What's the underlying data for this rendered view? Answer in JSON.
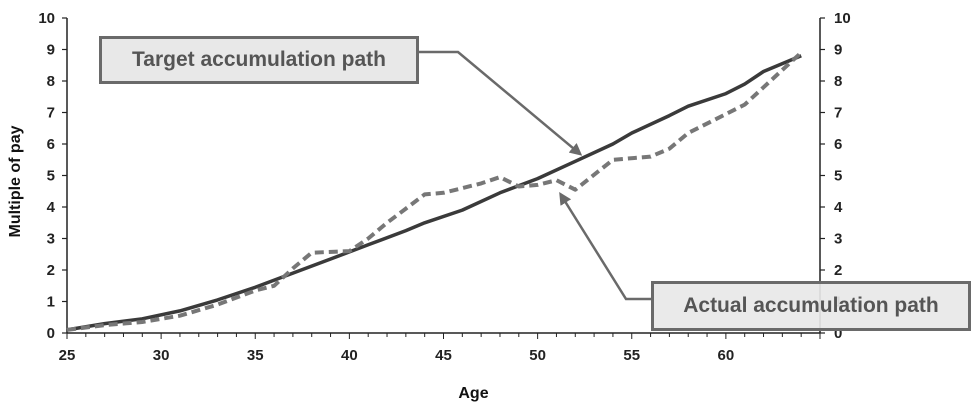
{
  "chart_data": {
    "type": "line",
    "title": "",
    "xlabel": "Age",
    "ylabel": "Multiple of pay",
    "xlim": [
      25,
      65
    ],
    "ylim": [
      0,
      10
    ],
    "x_ticks": [
      25,
      30,
      35,
      40,
      45,
      50,
      55,
      60
    ],
    "y_ticks": [
      0,
      1,
      2,
      3,
      4,
      5,
      6,
      7,
      8,
      9,
      10
    ],
    "secondary_y_ticks": [
      0,
      1,
      2,
      3,
      4,
      5,
      6,
      7,
      8,
      9,
      10
    ],
    "grid": false,
    "series": [
      {
        "name": "Target accumulation path",
        "style": "solid",
        "color": "#3a3a3a",
        "x": [
          25,
          27,
          29,
          31,
          33,
          35,
          37,
          39,
          41,
          43,
          44,
          46,
          48,
          50,
          52,
          54,
          55,
          57,
          58,
          60,
          61,
          62,
          64
        ],
        "y": [
          0.1,
          0.3,
          0.45,
          0.7,
          1.05,
          1.45,
          1.9,
          2.35,
          2.8,
          3.25,
          3.5,
          3.9,
          4.45,
          4.9,
          5.45,
          6.0,
          6.35,
          6.9,
          7.2,
          7.6,
          7.9,
          8.3,
          8.8
        ]
      },
      {
        "name": "Actual accumulation path",
        "style": "dashed",
        "color": "#777777",
        "x": [
          25,
          27,
          29,
          31,
          33,
          35,
          36,
          37,
          38,
          40,
          41,
          42,
          43,
          44,
          45,
          47,
          48,
          49,
          50,
          51,
          52,
          54,
          56,
          57,
          58,
          60,
          61,
          62,
          64
        ],
        "y": [
          0.1,
          0.25,
          0.35,
          0.55,
          0.9,
          1.35,
          1.5,
          2.05,
          2.55,
          2.6,
          3.0,
          3.5,
          3.95,
          4.4,
          4.45,
          4.75,
          4.95,
          4.65,
          4.7,
          4.85,
          4.55,
          5.5,
          5.6,
          5.85,
          6.35,
          6.95,
          7.25,
          7.8,
          8.9
        ]
      }
    ],
    "annotations": [
      {
        "text": "Target accumulation path",
        "target_series": "Target accumulation path"
      },
      {
        "text": "Actual accumulation path",
        "target_series": "Actual accumulation path"
      }
    ]
  }
}
